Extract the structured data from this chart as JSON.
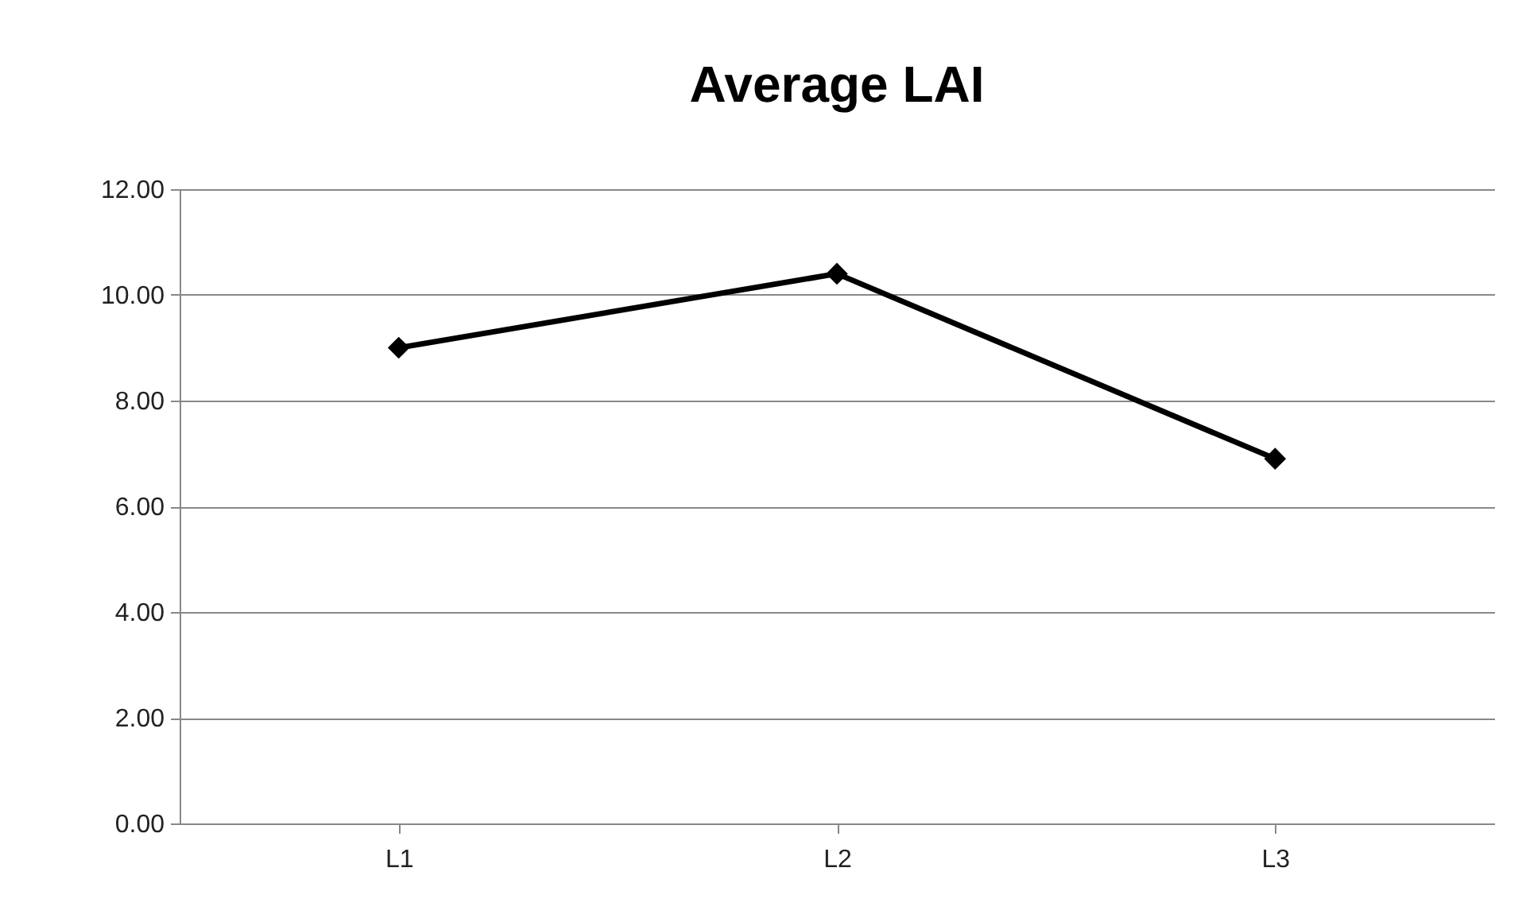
{
  "chart_data": {
    "type": "line",
    "title": "Average LAI",
    "categories": [
      "L1",
      "L2",
      "L3"
    ],
    "series": [
      {
        "color": "#000000",
        "values": [
          9.0,
          10.4,
          6.9
        ]
      }
    ],
    "ylim": [
      0,
      12
    ],
    "yticks": [
      {
        "value": 0,
        "label": "0.00"
      },
      {
        "value": 2,
        "label": "2.00"
      },
      {
        "value": 4,
        "label": "4.00"
      },
      {
        "value": 6,
        "label": "6.00"
      },
      {
        "value": 8,
        "label": "8.00"
      },
      {
        "value": 10,
        "label": "10.00"
      },
      {
        "value": 12,
        "label": "12.00"
      }
    ],
    "grid": "y",
    "marker": "diamond",
    "line_style": "solid"
  }
}
